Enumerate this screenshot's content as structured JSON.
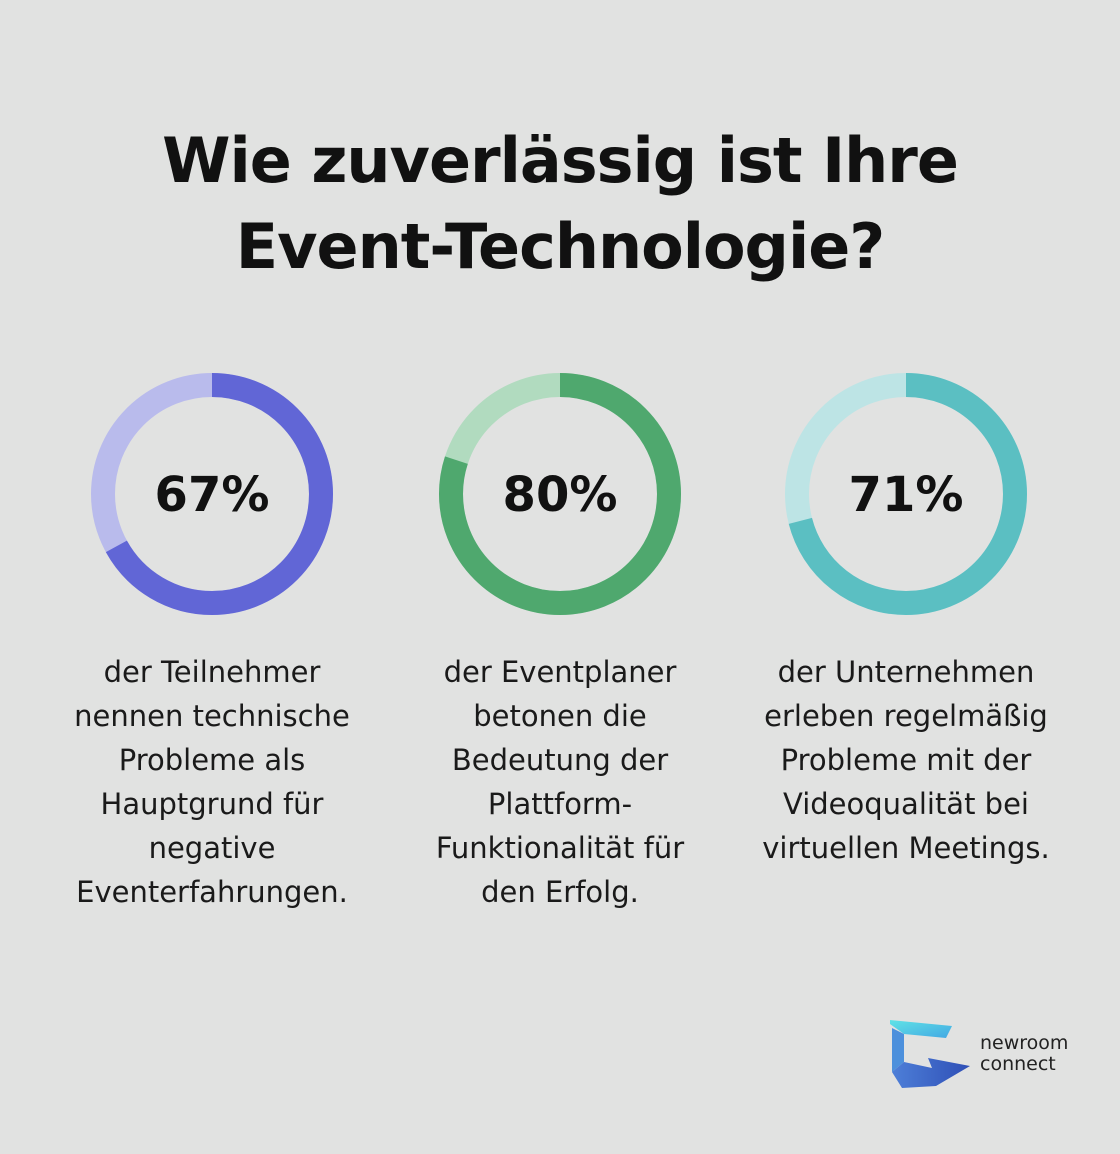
{
  "title_lines": [
    "Wie zuverlässig ist Ihre",
    "Event-Technologie?"
  ],
  "chart_data": [
    {
      "type": "pie",
      "value": 67,
      "label": "67%",
      "color": "#6166d6",
      "track_color": "#b9bbec",
      "description_lines": [
        "der Teilnehmer",
        "nennen technische",
        "Probleme als",
        "Hauptgrund für",
        "negative",
        "Eventerfahrungen."
      ]
    },
    {
      "type": "pie",
      "value": 80,
      "label": "80%",
      "color": "#4fa86e",
      "track_color": "#b1dbbf",
      "description_lines": [
        "der Eventplaner",
        "betonen die",
        "Bedeutung der",
        "Plattform-",
        "Funktionalität für",
        "den Erfolg."
      ]
    },
    {
      "type": "pie",
      "value": 71,
      "label": "71%",
      "color": "#5bbfc2",
      "track_color": "#bde4e5",
      "description_lines": [
        "der Unternehmen",
        "erleben regelmäßig",
        "Probleme mit der",
        "Videoqualität bei",
        "virtuellen Meetings."
      ]
    }
  ],
  "logo": {
    "icon": "newroom-connect-logo-icon",
    "lines": [
      "newroom",
      "connect"
    ]
  }
}
